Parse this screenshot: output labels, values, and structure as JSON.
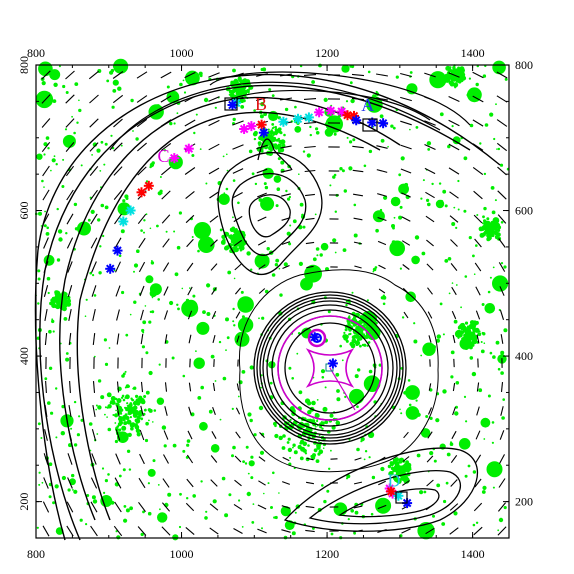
{
  "chart_data": {
    "type": "scatter",
    "title": "",
    "xlabel": "",
    "ylabel": "",
    "xlim": [
      800,
      1450
    ],
    "ylim": [
      150,
      800
    ],
    "grid": false,
    "x_ticks": [
      800,
      1000,
      1200,
      1400
    ],
    "y_ticks": [
      200,
      400,
      600,
      800
    ],
    "x_tick_labels": [
      "800",
      "1000",
      "1200",
      "1400"
    ],
    "y_tick_labels": [
      "200",
      "400",
      "600",
      "800"
    ],
    "image_labels": [
      {
        "text": "A",
        "x": 1247,
        "y": 737,
        "color": "#2233ee"
      },
      {
        "text": "B",
        "x": 1101,
        "y": 738,
        "color": "#dd1111"
      },
      {
        "text": "C",
        "x": 967,
        "y": 667,
        "color": "#dd00dd"
      },
      {
        "text": "D",
        "x": 1283,
        "y": 221,
        "color": "#20c0e0"
      }
    ],
    "series": [
      {
        "color": "#ff00ff",
        "points": [
          [
            1189,
            735
          ],
          [
            1205,
            737
          ],
          [
            1220,
            736
          ],
          [
            1096,
            716
          ],
          [
            1086,
            712
          ],
          [
            1010,
            685
          ],
          [
            990,
            672
          ],
          [
            1286,
            218
          ],
          [
            1290,
            211
          ]
        ]
      },
      {
        "color": "#ff0000",
        "points": [
          [
            1228,
            731
          ],
          [
            1237,
            730
          ],
          [
            1110,
            718
          ],
          [
            955,
            634
          ],
          [
            945,
            625
          ],
          [
            1288,
            214
          ]
        ]
      },
      {
        "color": "#00e0e0",
        "points": [
          [
            1140,
            722
          ],
          [
            1160,
            726
          ],
          [
            1175,
            728
          ],
          [
            1075,
            748
          ],
          [
            920,
            585
          ],
          [
            930,
            600
          ],
          [
            1298,
            208
          ]
        ]
      },
      {
        "color": "#0000ff",
        "points": [
          [
            1240,
            724
          ],
          [
            1262,
            721
          ],
          [
            1277,
            720
          ],
          [
            1113,
            707
          ],
          [
            1070,
            745
          ],
          [
            902,
            520
          ],
          [
            912,
            545
          ],
          [
            1310,
            198
          ],
          [
            1208,
            390
          ],
          [
            1183,
            426
          ]
        ]
      }
    ],
    "critical_curve_marks": [
      {
        "color": "#cc00cc",
        "x": 1182,
        "y": 430
      }
    ]
  },
  "colors": {
    "contours": "#000000",
    "noise": "#00ee00",
    "axis": "#000000"
  }
}
